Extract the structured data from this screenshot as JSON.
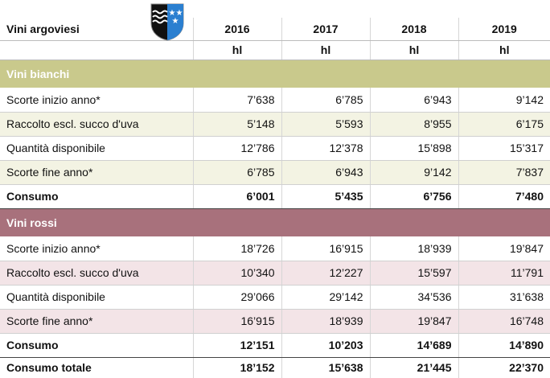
{
  "header": {
    "title": "Vini argoviesi",
    "years": [
      "2016",
      "2017",
      "2018",
      "2019"
    ],
    "units": [
      "hl",
      "hl",
      "hl",
      "hl"
    ]
  },
  "sections": [
    {
      "name": "Vini bianchi",
      "rows": [
        {
          "label": "Scorte inizio anno*",
          "values": [
            "7’638",
            "6’785",
            "6’943",
            "9’142"
          ]
        },
        {
          "label": "Raccolto escl. succo d'uva",
          "values": [
            "5’148",
            "5’593",
            "8’955",
            "6’175"
          ]
        },
        {
          "label": "Quantità disponibile",
          "values": [
            "12’786",
            "12’378",
            "15’898",
            "15’317"
          ]
        },
        {
          "label": "Scorte fine anno*",
          "values": [
            "6’785",
            "6’943",
            "9’142",
            "7’837"
          ]
        },
        {
          "label": "Consumo",
          "values": [
            "6’001",
            "5’435",
            "6’756",
            "7’480"
          ]
        }
      ]
    },
    {
      "name": "Vini rossi",
      "rows": [
        {
          "label": "Scorte inizio anno*",
          "values": [
            "18’726",
            "16’915",
            "18’939",
            "19’847"
          ]
        },
        {
          "label": "Raccolto escl. succo d'uva",
          "values": [
            "10’340",
            "12’227",
            "15’597",
            "11’791"
          ]
        },
        {
          "label": "Quantità disponibile",
          "values": [
            "29’066",
            "29’142",
            "34’536",
            "31’638"
          ]
        },
        {
          "label": "Scorte fine anno*",
          "values": [
            "16’915",
            "18’939",
            "19’847",
            "16’748"
          ]
        },
        {
          "label": "Consumo",
          "values": [
            "12’151",
            "10’203",
            "14’689",
            "14’890"
          ]
        }
      ]
    }
  ],
  "total": {
    "label": "Consumo totale",
    "values": [
      "18’152",
      "15’638",
      "21’445",
      "22’370"
    ]
  }
}
